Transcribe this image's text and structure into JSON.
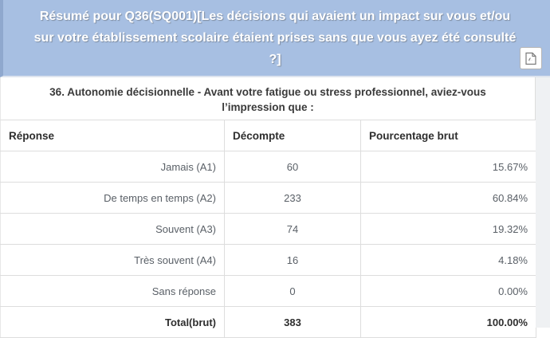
{
  "panel": {
    "title": "Résumé pour Q36(SQ001)[Les décisions qui avaient un impact sur vous et/ou sur votre établissement scolaire étaient prises sans que vous ayez été consulté ?]"
  },
  "question": {
    "text": "36. Autonomie décisionnelle - Avant votre fatigue ou stress professionnel, aviez-vous l’impression que :"
  },
  "icons": {
    "header_button": "pdf-file-icon"
  },
  "colors": {
    "header_background": "#a7bfe2",
    "header_border_left": "#8fa8ce",
    "header_text": "#ffffff",
    "table_border": "#dddddd",
    "cell_text": "#5a6067",
    "strong_text": "#2e2e2e"
  },
  "table": {
    "columns": [
      "Réponse",
      "Décompte",
      "Pourcentage brut"
    ],
    "rows": [
      {
        "label": "Jamais (A1)",
        "count": "60",
        "percent": "15.67%",
        "total": false
      },
      {
        "label": "De temps en temps (A2)",
        "count": "233",
        "percent": "60.84%",
        "total": false
      },
      {
        "label": "Souvent (A3)",
        "count": "74",
        "percent": "19.32%",
        "total": false
      },
      {
        "label": "Très souvent (A4)",
        "count": "16",
        "percent": "4.18%",
        "total": false
      },
      {
        "label": "Sans réponse",
        "count": "0",
        "percent": "0.00%",
        "total": false
      },
      {
        "label": "Total(brut)",
        "count": "383",
        "percent": "100.00%",
        "total": true
      }
    ]
  }
}
